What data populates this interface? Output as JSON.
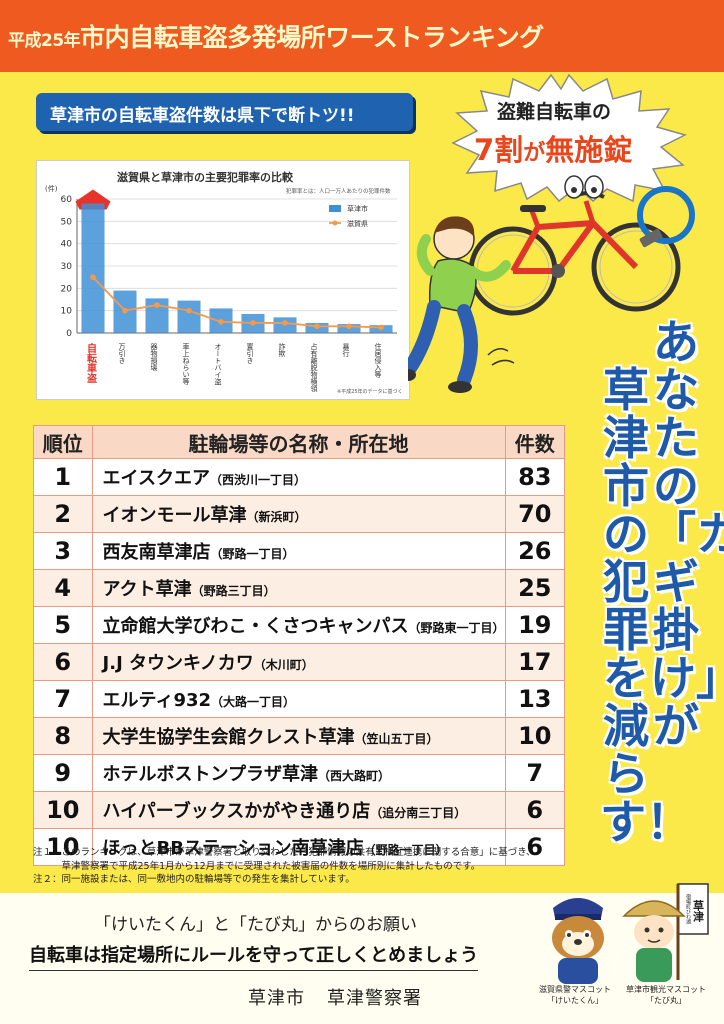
{
  "header": {
    "year_prefix": "平成25年",
    "title_main": "市内自転車盗多発場所ワーストランキング"
  },
  "subheader": "草津市の自転車盗件数は県下で断トツ!!",
  "burst": {
    "line1": "盗難自転車の",
    "line2_big": "7割",
    "line2_small": "が",
    "line2_end": "無施錠"
  },
  "slogan": {
    "col1": "あなたの「カギ掛け」が",
    "col2": "草津市の犯罪を減らす！"
  },
  "chart_data": {
    "type": "bar",
    "title": "滋賀県と草津市の主要犯罪率の比較",
    "note": "犯罪率とは：人口一万人あたりの犯罪件数",
    "source_note": "※平成25年のデータに基づく",
    "y_unit": "(件)",
    "ylim": [
      0,
      60
    ],
    "yticks": [
      0,
      10,
      20,
      30,
      40,
      50,
      60
    ],
    "categories": [
      "自転車盗",
      "万引き",
      "器物損壊",
      "車上ねらい等",
      "オートバイ盗",
      "置引き",
      "詐欺",
      "占有離脱物横領",
      "暴行",
      "住居侵入等"
    ],
    "series": [
      {
        "name": "草津市",
        "type": "bar",
        "color": "#3f8fd6",
        "values": [
          58,
          19,
          15.5,
          14.5,
          11,
          8.5,
          7,
          4.5,
          4,
          3.5
        ]
      },
      {
        "name": "滋賀県",
        "type": "line",
        "color": "#f39a4c",
        "values": [
          25,
          10,
          12.5,
          10,
          5,
          4.5,
          4.5,
          3,
          3,
          2.5
        ]
      }
    ],
    "highlight_category": "自転車盗",
    "grid": true,
    "legend": "top-right"
  },
  "table": {
    "headers": [
      "順位",
      "駐輪場等の名称・所在地",
      "件数"
    ],
    "rows": [
      {
        "rank": "1",
        "name": "エイスクエア",
        "loc": "（西渋川一丁目）",
        "count": "83"
      },
      {
        "rank": "2",
        "name": "イオンモール草津",
        "loc": "（新浜町）",
        "count": "70"
      },
      {
        "rank": "3",
        "name": "西友南草津店",
        "loc": "（野路一丁目）",
        "count": "26"
      },
      {
        "rank": "4",
        "name": "アクト草津",
        "loc": "（野路三丁目）",
        "count": "25"
      },
      {
        "rank": "5",
        "name": "立命館大学びわこ・くさつキャンパス",
        "loc": "（野路東一丁目）",
        "count": "19"
      },
      {
        "rank": "6",
        "name": "J.J タウンキノカワ",
        "loc": "（木川町）",
        "count": "17"
      },
      {
        "rank": "7",
        "name": "エルティ932",
        "loc": "（大路一丁目）",
        "count": "13"
      },
      {
        "rank": "8",
        "name": "大学生協学生会館クレスト草津",
        "loc": "（笠山五丁目）",
        "count": "10"
      },
      {
        "rank": "9",
        "name": "ホテルボストンプラザ草津",
        "loc": "（西大路町）",
        "count": "7"
      },
      {
        "rank": "10",
        "name": "ハイパーブックスかがやき通り店",
        "loc": "（追分南三丁目）",
        "count": "6"
      },
      {
        "rank": "10",
        "name": "ほっとBBステーション南草津店",
        "loc": "（野路一丁目）",
        "count": "6"
      }
    ]
  },
  "notes": {
    "n1a": "注１：このランキングは、草津市が草津警察署と取り交わした「犯罪情報の共有と相互連携に関する合意」に基づき、",
    "n1b": "　　　草津警察署で平成25年1月から12月までに受理された被害届の件数を場所別に集計したものです。",
    "n2": "注２：同一施設または、同一敷地内の駐輪場等での発生を集計しています。"
  },
  "footer": {
    "request": "「けいたくん」と「たび丸」からのお願い",
    "rule": "自転車は指定場所にルールを守って正しくとめましょう",
    "city": "草津市",
    "police": "草津警察署",
    "mascot1_line1": "滋賀県警マスコット",
    "mascot1_line2": "「けいたくん」",
    "mascot2_line1": "草津市観光マスコット",
    "mascot2_line2": "「たび丸」",
    "mascot2_flag": "草津",
    "mascot2_flag_small": "宿場町びわ湖"
  },
  "colors": {
    "background": "#fbe94a",
    "banner": "#ee5a1f",
    "subbanner": "#1e62b0",
    "slogan": "#1f5aa8",
    "table_border": "#e99a84"
  }
}
